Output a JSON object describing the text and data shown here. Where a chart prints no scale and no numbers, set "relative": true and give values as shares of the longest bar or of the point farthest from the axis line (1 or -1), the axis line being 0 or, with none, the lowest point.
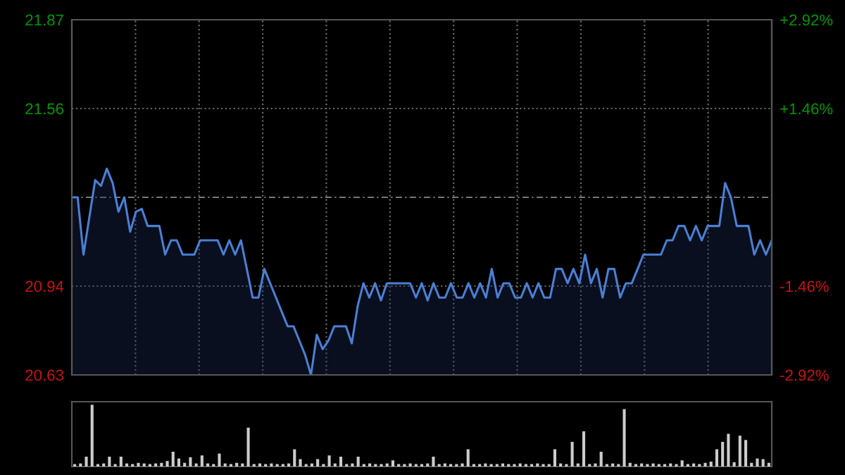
{
  "chart_data": [
    {
      "type": "area",
      "categories": [
        null,
        null,
        null,
        null,
        null,
        null,
        null,
        null,
        null,
        null,
        null,
        null,
        null,
        null,
        null,
        null,
        null,
        null,
        null,
        null,
        null,
        null,
        null,
        null,
        null,
        null,
        null,
        null,
        null,
        null,
        null,
        null,
        null,
        null,
        null,
        null,
        null,
        null,
        null,
        null,
        null,
        null,
        null,
        null,
        null,
        null,
        null,
        null,
        null,
        null,
        null,
        null,
        null,
        null,
        null,
        null,
        null,
        null,
        null,
        null,
        null,
        null,
        null,
        null,
        null,
        null,
        null,
        null,
        null,
        null,
        null,
        null,
        null,
        null,
        null,
        null,
        null,
        null,
        null,
        null,
        null,
        null,
        null,
        null,
        null,
        null,
        null,
        null,
        null,
        null,
        null,
        null,
        null,
        null,
        null,
        null,
        null,
        null,
        null,
        null,
        null,
        null,
        null,
        null,
        null,
        null,
        null,
        null,
        null,
        null,
        null,
        null,
        null,
        null,
        null,
        null,
        null,
        null,
        null,
        null,
        null
      ],
      "ylim": [
        20.63,
        21.87
      ],
      "yticks": [
        20.63,
        20.94,
        21.56,
        21.87
      ],
      "y2lim": [
        -2.92,
        2.92
      ],
      "y2ticks": [
        {
          "value": -2.92,
          "label": "-2.92%"
        },
        {
          "value": -1.46,
          "label": "-1.46%"
        },
        {
          "value": 1.46,
          "label": "+1.46%"
        },
        {
          "value": 2.92,
          "label": "+2.92%"
        }
      ],
      "ref_lines": [
        {
          "axis": "y",
          "value": 21.25,
          "line_style": "dashed"
        }
      ],
      "grid": true,
      "tick_labels": "y",
      "series": [
        {
          "color": "#4a7fd4",
          "values": [
            21.25,
            21.25,
            21.05,
            21.18,
            21.31,
            21.29,
            21.35,
            21.3,
            21.2,
            21.25,
            21.13,
            21.2,
            21.21,
            21.15,
            21.15,
            21.15,
            21.05,
            21.1,
            21.1,
            21.05,
            21.05,
            21.05,
            21.1,
            21.1,
            21.1,
            21.1,
            21.05,
            21.1,
            21.05,
            21.1,
            21.0,
            20.9,
            20.9,
            21.0,
            20.95,
            20.9,
            20.85,
            20.8,
            20.8,
            20.75,
            20.7,
            20.63,
            20.77,
            20.72,
            20.75,
            20.8,
            20.8,
            20.8,
            20.74,
            20.87,
            20.95,
            20.9,
            20.95,
            20.89,
            20.95,
            20.95,
            20.95,
            20.95,
            20.95,
            20.9,
            20.95,
            20.89,
            20.95,
            20.9,
            20.9,
            20.95,
            20.9,
            20.9,
            20.95,
            20.9,
            20.95,
            20.9,
            21.0,
            20.9,
            20.95,
            20.95,
            20.9,
            20.9,
            20.95,
            20.9,
            20.95,
            20.9,
            20.9,
            21.0,
            21.0,
            20.95,
            21.0,
            20.95,
            21.05,
            20.95,
            21.0,
            20.9,
            21.0,
            21.0,
            20.9,
            20.95,
            20.95,
            21.0,
            21.05,
            21.05,
            21.05,
            21.05,
            21.1,
            21.1,
            21.15,
            21.15,
            21.1,
            21.15,
            21.1,
            21.15,
            21.15,
            21.15,
            21.3,
            21.25,
            21.15,
            21.15,
            21.15,
            21.05,
            21.1,
            21.05,
            21.1
          ]
        }
      ]
    },
    {
      "type": "bar",
      "relative": true,
      "tick_labels": false,
      "categories": [
        null,
        null,
        null,
        null,
        null,
        null,
        null,
        null,
        null,
        null,
        null,
        null,
        null,
        null,
        null,
        null,
        null,
        null,
        null,
        null,
        null,
        null,
        null,
        null,
        null,
        null,
        null,
        null,
        null,
        null,
        null,
        null,
        null,
        null,
        null,
        null,
        null,
        null,
        null,
        null,
        null,
        null,
        null,
        null,
        null,
        null,
        null,
        null,
        null,
        null,
        null,
        null,
        null,
        null,
        null,
        null,
        null,
        null,
        null,
        null,
        null,
        null,
        null,
        null,
        null,
        null,
        null,
        null,
        null,
        null,
        null,
        null,
        null,
        null,
        null,
        null,
        null,
        null,
        null,
        null,
        null,
        null,
        null,
        null,
        null,
        null,
        null,
        null,
        null,
        null,
        null,
        null,
        null,
        null,
        null,
        null,
        null,
        null,
        null,
        null,
        null,
        null,
        null,
        null,
        null,
        null,
        null,
        null,
        null,
        null,
        null,
        null,
        null,
        null,
        null,
        null,
        null,
        null,
        null,
        null,
        null
      ],
      "series": [
        {
          "color": "#cccccc",
          "values": [
            0.04,
            0.05,
            0.16,
            1,
            0.04,
            0.05,
            0.16,
            0.04,
            0.16,
            0.05,
            0.04,
            0.06,
            0.05,
            0.04,
            0.05,
            0.06,
            0.09,
            0.24,
            0.13,
            0.06,
            0.15,
            0.05,
            0.18,
            0.05,
            0.04,
            0.21,
            0.05,
            0.04,
            0.06,
            0.05,
            0.63,
            0.04,
            0.05,
            0.04,
            0.05,
            0.04,
            0.04,
            0.05,
            0.28,
            0.12,
            0.04,
            0.05,
            0.12,
            0.04,
            0.18,
            0.05,
            0.16,
            0.04,
            0.05,
            0.16,
            0.04,
            0.05,
            0.04,
            0.04,
            0.05,
            0.1,
            0.04,
            0.04,
            0.05,
            0.04,
            0.04,
            0.05,
            0.16,
            0.04,
            0.05,
            0.04,
            0.04,
            0.05,
            0.28,
            0.04,
            0.04,
            0.05,
            0.04,
            0.04,
            0.05,
            0.04,
            0.04,
            0.05,
            0.04,
            0.04,
            0.05,
            0.04,
            0.04,
            0.28,
            0.05,
            0.04,
            0.4,
            0.05,
            0.57,
            0.04,
            0.05,
            0.24,
            0.04,
            0.05,
            0.04,
            0.93,
            0.06,
            0.04,
            0.05,
            0.04,
            0.05,
            0.04,
            0.04,
            0.05,
            0.04,
            0.1,
            0.04,
            0.05,
            0.04,
            0.06,
            0.08,
            0.28,
            0.4,
            0.53,
            0.07,
            0.5,
            0.43,
            0.06,
            0.13,
            0.12,
            0.06
          ]
        }
      ]
    }
  ]
}
